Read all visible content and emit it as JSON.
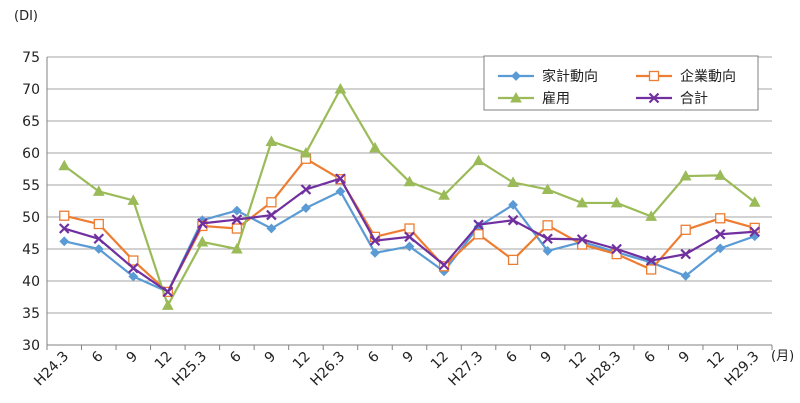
{
  "chart_data": {
    "type": "line",
    "ylabel": "(DI)",
    "xunit": "(月)",
    "ylim": [
      30,
      75
    ],
    "yticks": [
      30,
      35,
      40,
      45,
      50,
      55,
      60,
      65,
      70,
      75
    ],
    "grid": true,
    "legend_position": "top-right",
    "categories": [
      "H24.3",
      "6",
      "9",
      "12",
      "H25.3",
      "6",
      "9",
      "12",
      "H26.3",
      "6",
      "9",
      "12",
      "H27.3",
      "6",
      "9",
      "12",
      "H28.3",
      "6",
      "9",
      "12",
      "H29.3"
    ],
    "series": [
      {
        "name": "家計動向",
        "color": "#5b9bd5",
        "marker": "diamond",
        "values": [
          46.2,
          45.0,
          40.7,
          38.3,
          49.5,
          51.0,
          48.2,
          51.4,
          54.0,
          44.4,
          45.4,
          41.5,
          48.5,
          51.9,
          44.7,
          46.1,
          44.5,
          42.9,
          40.8,
          45.1,
          47.0
        ]
      },
      {
        "name": "企業動向",
        "color": "#ed7d31",
        "marker": "square",
        "values": [
          50.2,
          48.9,
          43.2,
          38.3,
          48.6,
          48.2,
          52.3,
          59.1,
          55.9,
          46.9,
          48.2,
          42.3,
          47.3,
          43.3,
          48.7,
          45.7,
          44.2,
          41.8,
          48.0,
          49.8,
          48.3
        ]
      },
      {
        "name": "雇用",
        "color": "#9bbb59",
        "marker": "triangle",
        "values": [
          58.0,
          54.0,
          52.6,
          36.2,
          46.1,
          45.0,
          61.8,
          60.0,
          70.0,
          60.8,
          55.5,
          53.4,
          58.8,
          55.4,
          54.3,
          52.2,
          52.2,
          50.1,
          56.4,
          56.5,
          52.3
        ]
      },
      {
        "name": "合計",
        "color": "#7030a0",
        "marker": "cross",
        "values": [
          48.2,
          46.6,
          42.0,
          38.3,
          49.0,
          49.6,
          50.3,
          54.3,
          56.0,
          46.3,
          46.9,
          42.5,
          48.8,
          49.5,
          46.6,
          46.5,
          45.0,
          43.2,
          44.2,
          47.3,
          47.7
        ]
      }
    ]
  }
}
